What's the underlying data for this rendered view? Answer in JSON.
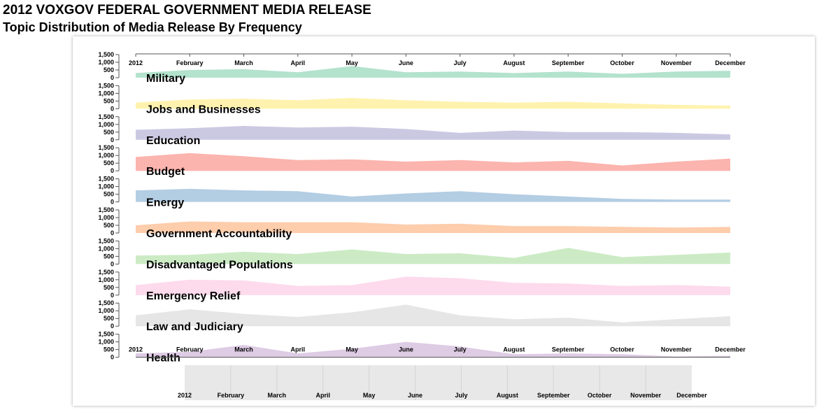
{
  "header": {
    "title": "2012 VOXGOV FEDERAL GOVERNMENT MEDIA RELEASE",
    "subtitle": "Topic Distribution of Media Release By Frequency"
  },
  "chart_data": {
    "type": "area",
    "layout": "small-multiples",
    "x": [
      "2012",
      "February",
      "March",
      "April",
      "May",
      "June",
      "July",
      "August",
      "September",
      "October",
      "November",
      "December"
    ],
    "yticks": [
      "0",
      "500",
      "1,000",
      "1,500"
    ],
    "ylim": [
      0,
      1500
    ],
    "series": [
      {
        "name": "Military",
        "color": "#b3e2cd",
        "values": [
          300,
          500,
          550,
          350,
          750,
          350,
          400,
          300,
          400,
          250,
          400,
          450
        ]
      },
      {
        "name": "Jobs and Businesses",
        "color": "#fff2ae",
        "values": [
          400,
          600,
          650,
          550,
          700,
          550,
          450,
          400,
          450,
          350,
          250,
          200
        ]
      },
      {
        "name": "Education",
        "color": "#cbc9e2",
        "values": [
          650,
          750,
          900,
          800,
          850,
          700,
          450,
          600,
          500,
          500,
          450,
          350
        ]
      },
      {
        "name": "Budget",
        "color": "#fbb4ae",
        "values": [
          900,
          1150,
          950,
          700,
          750,
          600,
          700,
          550,
          650,
          350,
          600,
          800
        ]
      },
      {
        "name": "Energy",
        "color": "#b3cde3",
        "values": [
          750,
          850,
          750,
          700,
          350,
          550,
          700,
          500,
          350,
          200,
          150,
          150
        ]
      },
      {
        "name": "Government Accountability",
        "color": "#fdcdac",
        "values": [
          500,
          750,
          700,
          700,
          700,
          550,
          600,
          450,
          450,
          400,
          350,
          400
        ]
      },
      {
        "name": "Disadvantaged Populations",
        "color": "#ccebc5",
        "values": [
          550,
          600,
          800,
          650,
          950,
          650,
          700,
          400,
          1050,
          450,
          600,
          750
        ]
      },
      {
        "name": "Emergency Relief",
        "color": "#fddaec",
        "values": [
          650,
          1000,
          950,
          600,
          650,
          1200,
          1100,
          800,
          750,
          600,
          650,
          550
        ]
      },
      {
        "name": "Law and Judiciary",
        "color": "#e6e6e6",
        "values": [
          700,
          1100,
          800,
          600,
          900,
          1400,
          700,
          450,
          550,
          250,
          450,
          650
        ]
      },
      {
        "name": "Health",
        "color": "#decbe4",
        "values": [
          250,
          350,
          800,
          250,
          550,
          1000,
          700,
          200,
          250,
          200,
          50,
          100
        ]
      }
    ],
    "brush": {
      "x": [
        "2012",
        "February",
        "March",
        "April",
        "May",
        "June",
        "July",
        "August",
        "September",
        "October",
        "November",
        "December"
      ]
    }
  }
}
